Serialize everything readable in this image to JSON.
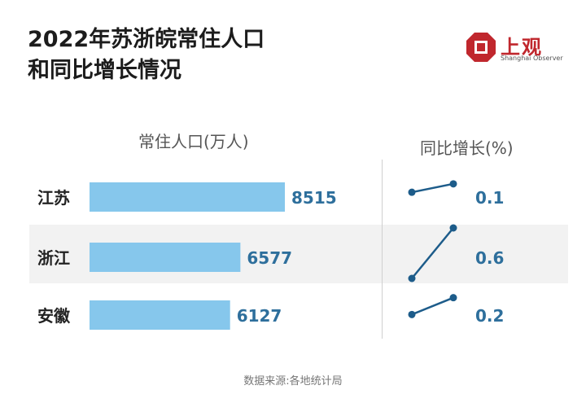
{
  "title_line1": "2022年苏浙皖常住人口",
  "title_line2": "和同比增长情况",
  "logo": {
    "cn": "上观",
    "en": "Shanghai Observer",
    "color": "#c0272d"
  },
  "colors": {
    "bar": "#86c7ec",
    "value_text": "#2e6f9c",
    "line": "#1d5c8a",
    "band": "#f2f2f2"
  },
  "source": "数据来源:各地统计局",
  "chart_data": {
    "type": "bar",
    "population_header": "常住人口(万人)",
    "growth_header": "同比增长(%)",
    "categories": [
      "江苏",
      "浙江",
      "安徽"
    ],
    "population_values": [
      8515,
      6577,
      6127
    ],
    "growth_values": [
      0.1,
      0.6,
      0.2
    ],
    "growth_labels": [
      "0.1",
      "0.6",
      "0.2"
    ]
  }
}
